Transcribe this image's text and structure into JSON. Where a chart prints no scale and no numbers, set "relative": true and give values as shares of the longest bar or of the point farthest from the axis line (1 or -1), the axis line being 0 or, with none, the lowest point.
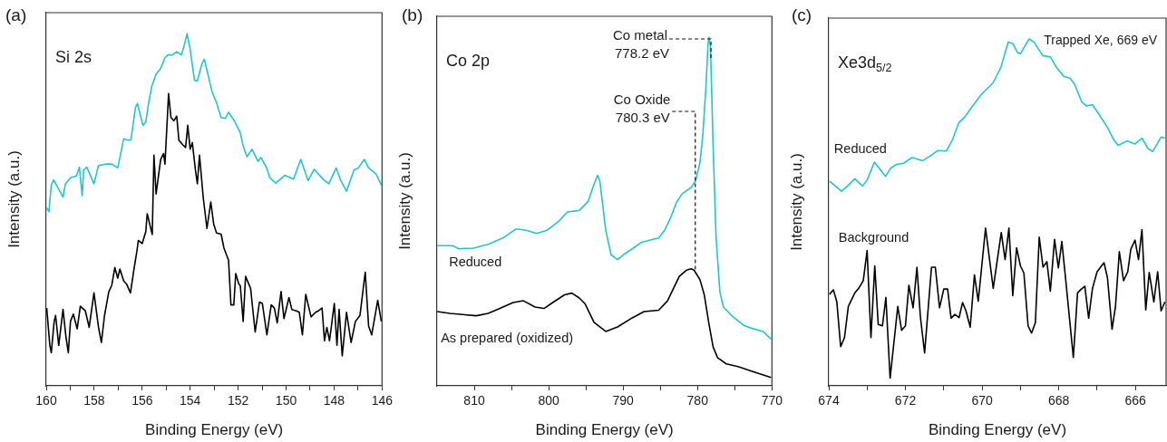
{
  "chart_data": [
    {
      "type": "line",
      "title": "(a)",
      "xlabel": "Binding Energy (eV)",
      "ylabel": "Intensity (a.u.)",
      "relative": true,
      "xlim": [
        160,
        146
      ],
      "xticks": [
        160,
        {
          "value": 159,
          "label": null
        },
        158,
        {
          "value": 157,
          "label": null
        },
        156,
        {
          "value": 155,
          "label": null
        },
        154,
        {
          "value": 153,
          "label": null
        },
        152,
        {
          "value": 151,
          "label": null
        },
        150,
        {
          "value": 149,
          "label": null
        },
        148,
        {
          "value": 147,
          "label": null
        },
        146
      ],
      "annotations": [
        "Si 2s"
      ],
      "series": [
        {
          "color": "#1fc6cf",
          "x": [
            159.98,
            159.89,
            159.79,
            159.69,
            159.54,
            159.3,
            159.2,
            158.99,
            158.74,
            158.62,
            158.5,
            158.44,
            158.31,
            158.01,
            157.82,
            157.51,
            157.27,
            157.02,
            156.77,
            156.59,
            156.47,
            156.28,
            156.2,
            155.97,
            155.85,
            155.73,
            155.6,
            155.42,
            155.23,
            155.05,
            154.93,
            154.74,
            154.56,
            154.37,
            154.25,
            154.13,
            154.0,
            153.82,
            153.7,
            153.51,
            153.41,
            153.2,
            153.08,
            152.9,
            152.71,
            152.53,
            152.4,
            152.16,
            151.91,
            151.79,
            151.63,
            151.42,
            151.17,
            151.05,
            150.8,
            150.68,
            150.43,
            150.06,
            149.69,
            149.39,
            149.08,
            148.83,
            148.46,
            148.22,
            147.91,
            147.72,
            147.48,
            147.17,
            146.99,
            146.74,
            146.56,
            146.25,
            146.03
          ],
          "values": [
            0.506,
            0.494,
            0.57,
            0.585,
            0.566,
            0.536,
            0.574,
            0.591,
            0.596,
            0.621,
            0.54,
            0.613,
            0.621,
            0.574,
            0.626,
            0.63,
            0.63,
            0.619,
            0.702,
            0.698,
            0.698,
            0.791,
            0.802,
            0.74,
            0.749,
            0.804,
            0.851,
            0.885,
            0.902,
            0.932,
            0.94,
            0.94,
            0.949,
            0.94,
            0.966,
            1.0,
            0.957,
            0.868,
            0.866,
            0.915,
            0.928,
            0.868,
            0.834,
            0.804,
            0.762,
            0.76,
            0.777,
            0.753,
            0.719,
            0.681,
            0.651,
            0.672,
            0.638,
            0.649,
            0.617,
            0.591,
            0.576,
            0.598,
            0.587,
            0.643,
            0.583,
            0.615,
            0.587,
            0.574,
            0.619,
            0.583,
            0.553,
            0.613,
            0.619,
            0.643,
            0.619,
            0.602,
            0.57
          ]
        },
        {
          "color": "#000000",
          "x": [
            159.98,
            159.85,
            159.79,
            159.67,
            159.61,
            159.48,
            159.3,
            159.18,
            159.08,
            158.99,
            158.87,
            158.71,
            158.58,
            158.37,
            158.21,
            158.01,
            157.82,
            157.7,
            157.57,
            157.39,
            157.27,
            157.14,
            157.02,
            156.93,
            156.77,
            156.65,
            156.49,
            156.34,
            156.22,
            156.16,
            156.0,
            155.85,
            155.79,
            155.67,
            155.58,
            155.51,
            155.42,
            155.23,
            155.11,
            155.05,
            154.9,
            154.8,
            154.68,
            154.56,
            154.47,
            154.31,
            154.19,
            154.1,
            154.0,
            153.91,
            153.78,
            153.7,
            153.61,
            153.45,
            153.3,
            153.14,
            153.02,
            152.9,
            152.71,
            152.59,
            152.4,
            152.3,
            152.18,
            152.1,
            151.97,
            151.91,
            151.79,
            151.69,
            151.48,
            151.29,
            151.11,
            150.99,
            150.8,
            150.62,
            150.49,
            150.37,
            150.21,
            150.09,
            149.88,
            149.76,
            149.57,
            149.45,
            149.32,
            149.18,
            148.96,
            148.77,
            148.65,
            148.5,
            148.4,
            148.3,
            148.19,
            147.99,
            147.88,
            147.79,
            147.66,
            147.48,
            147.29,
            147.11,
            146.92,
            146.7,
            146.56,
            146.43,
            146.18,
            146.03
          ],
          "values": [
            0.221,
            0.115,
            0.094,
            0.183,
            0.2,
            0.115,
            0.217,
            0.14,
            0.094,
            0.183,
            0.204,
            0.162,
            0.226,
            0.213,
            0.166,
            0.264,
            0.166,
            0.123,
            0.2,
            0.268,
            0.285,
            0.336,
            0.306,
            0.332,
            0.298,
            0.289,
            0.264,
            0.332,
            0.383,
            0.413,
            0.404,
            0.438,
            0.489,
            0.455,
            0.43,
            0.655,
            0.545,
            0.643,
            0.66,
            0.63,
            0.83,
            0.762,
            0.753,
            0.766,
            0.698,
            0.685,
            0.677,
            0.74,
            0.672,
            0.691,
            0.613,
            0.574,
            0.655,
            0.532,
            0.447,
            0.522,
            0.46,
            0.434,
            0.431,
            0.391,
            0.357,
            0.23,
            0.23,
            0.319,
            0.289,
            0.285,
            0.183,
            0.311,
            0.277,
            0.153,
            0.238,
            0.234,
            0.145,
            0.23,
            0.221,
            0.179,
            0.268,
            0.191,
            0.251,
            0.217,
            0.213,
            0.209,
            0.145,
            0.26,
            0.196,
            0.209,
            0.213,
            0.221,
            0.128,
            0.166,
            0.128,
            0.234,
            0.115,
            0.217,
            0.085,
            0.209,
            0.123,
            0.183,
            0.2,
            0.323,
            0.17,
            0.145,
            0.243,
            0.183
          ]
        }
      ]
    },
    {
      "type": "line",
      "title": "(b)",
      "xlabel": "Binding Energy (eV)",
      "ylabel": "Intensity (a.u.)",
      "relative": true,
      "xlim": [
        815,
        770
      ],
      "xticks": [
        810,
        {
          "value": 805,
          "label": null
        },
        800,
        {
          "value": 795,
          "label": null
        },
        790,
        {
          "value": 785,
          "label": null
        },
        780,
        {
          "value": 775,
          "label": null
        },
        770
      ],
      "annotations": [
        "Co 2p",
        {
          "text": "Co metal\n778.2 eV",
          "x": 778.2,
          "y": 0.934
        },
        {
          "text": "Co Oxide\n780.3 eV",
          "x": 780.3,
          "y": 0.326
        }
      ],
      "series": [
        {
          "name": "Reduced",
          "color": "#1fc6cf",
          "x": [
            814.98,
            814.07,
            812.89,
            812.09,
            810.12,
            808.14,
            806.17,
            804.39,
            803.0,
            801.62,
            800.24,
            798.66,
            797.47,
            795.89,
            794.7,
            793.91,
            793.44,
            793.12,
            792.33,
            791.62,
            790.75,
            789.96,
            788.77,
            787.59,
            786.01,
            785.22,
            784.43,
            783.64,
            782.85,
            782.06,
            780.87,
            780.28,
            779.68,
            779.29,
            778.89,
            778.58,
            778.46,
            778.26,
            777.91,
            777.51,
            777.0,
            776.52,
            775.34,
            773.75,
            772.57,
            771.19,
            770.12
          ],
          "values": [
            0.402,
            0.402,
            0.402,
            0.393,
            0.395,
            0.406,
            0.424,
            0.45,
            0.446,
            0.437,
            0.446,
            0.472,
            0.499,
            0.503,
            0.529,
            0.578,
            0.604,
            0.587,
            0.446,
            0.376,
            0.362,
            0.376,
            0.393,
            0.411,
            0.42,
            0.424,
            0.446,
            0.481,
            0.525,
            0.551,
            0.569,
            0.587,
            0.639,
            0.719,
            0.85,
            0.982,
            1.0,
            0.974,
            0.692,
            0.428,
            0.27,
            0.226,
            0.2,
            0.173,
            0.164,
            0.156,
            0.134
          ]
        },
        {
          "name": "As prepared (oxidized)",
          "color": "#000000",
          "x": [
            814.98,
            813.28,
            811.3,
            809.72,
            808.14,
            806.56,
            804.78,
            803.4,
            801.82,
            800.63,
            799.45,
            797.87,
            796.88,
            795.89,
            795.1,
            793.91,
            792.33,
            790.75,
            788.77,
            787.19,
            785.22,
            784.03,
            783.24,
            782.45,
            781.46,
            780.87,
            780.47,
            779.68,
            779.09,
            778.5,
            777.91,
            777.31,
            776.13,
            774.55,
            772.57,
            770.12
          ],
          "values": [
            0.213,
            0.208,
            0.204,
            0.201,
            0.208,
            0.222,
            0.239,
            0.244,
            0.226,
            0.222,
            0.239,
            0.261,
            0.266,
            0.252,
            0.235,
            0.182,
            0.156,
            0.169,
            0.195,
            0.213,
            0.217,
            0.244,
            0.279,
            0.314,
            0.332,
            0.336,
            0.332,
            0.305,
            0.261,
            0.182,
            0.112,
            0.081,
            0.063,
            0.055,
            0.041,
            0.024
          ]
        }
      ]
    },
    {
      "type": "line",
      "title": "(c)",
      "xlabel": "Binding Energy (eV)",
      "ylabel": "Intensity (a.u.)",
      "relative": true,
      "xlim": [
        674,
        665.2
      ],
      "xticks": [
        674,
        {
          "value": 673,
          "label": null
        },
        672,
        {
          "value": 671,
          "label": null
        },
        670,
        {
          "value": 669,
          "label": null
        },
        668,
        {
          "value": 667,
          "label": null
        },
        666
      ],
      "annotations": [
        "Xe3d$_{5/2}$",
        "Trapped Xe, 669 eV"
      ],
      "series": [
        {
          "name": "Reduced",
          "color": "#1fc6cf",
          "x": [
            673.98,
            673.83,
            673.67,
            673.51,
            673.32,
            673.12,
            673.0,
            672.81,
            672.69,
            672.52,
            672.38,
            672.22,
            672.06,
            671.83,
            671.55,
            671.36,
            671.16,
            670.93,
            670.77,
            670.61,
            670.45,
            670.26,
            670.02,
            669.71,
            669.51,
            669.32,
            669.2,
            669.08,
            669.0,
            668.89,
            668.77,
            668.65,
            668.42,
            668.22,
            668.06,
            667.87,
            667.71,
            667.59,
            667.4,
            667.28,
            667.12,
            666.96,
            666.73,
            666.57,
            666.45,
            666.22,
            666.02,
            665.83,
            665.67,
            665.55,
            665.33,
            665.23
          ],
          "values": [
            0.59,
            0.576,
            0.561,
            0.576,
            0.597,
            0.576,
            0.593,
            0.645,
            0.628,
            0.604,
            0.628,
            0.639,
            0.641,
            0.658,
            0.649,
            0.662,
            0.678,
            0.677,
            0.71,
            0.758,
            0.775,
            0.805,
            0.84,
            0.874,
            0.918,
            0.991,
            0.987,
            0.961,
            0.957,
            0.978,
            1.0,
            0.991,
            0.952,
            0.948,
            0.918,
            0.892,
            0.887,
            0.87,
            0.818,
            0.807,
            0.81,
            0.784,
            0.745,
            0.71,
            0.693,
            0.706,
            0.697,
            0.714,
            0.684,
            0.675,
            0.717,
            0.714
          ]
        },
        {
          "name": "Background",
          "color": "#000000",
          "x": [
            673.98,
            673.88,
            673.79,
            673.69,
            673.59,
            673.49,
            673.32,
            673.22,
            673.1,
            673.0,
            672.9,
            672.8,
            672.71,
            672.6,
            672.51,
            672.4,
            672.2,
            672.1,
            672.0,
            671.91,
            671.8,
            671.7,
            671.61,
            671.5,
            671.32,
            671.22,
            671.11,
            671.0,
            670.9,
            670.81,
            670.71,
            670.6,
            670.51,
            670.42,
            670.31,
            670.2,
            670.1,
            669.91,
            669.71,
            669.5,
            669.4,
            669.3,
            669.2,
            669.1,
            669.0,
            668.91,
            668.8,
            668.71,
            668.61,
            668.51,
            668.41,
            668.31,
            668.22,
            668.11,
            668.01,
            667.92,
            667.82,
            667.62,
            667.51,
            667.41,
            667.32,
            667.22,
            667.12,
            667.0,
            666.82,
            666.73,
            666.61,
            666.52,
            666.42,
            666.31,
            666.2,
            666.12,
            666.01,
            665.92,
            665.83,
            665.73,
            665.64,
            665.52,
            665.42,
            665.33,
            665.23
          ],
          "values": [
            0.264,
            0.277,
            0.242,
            0.113,
            0.139,
            0.229,
            0.268,
            0.281,
            0.303,
            0.39,
            0.139,
            0.346,
            0.177,
            0.173,
            0.255,
            0.022,
            0.229,
            0.16,
            0.173,
            0.29,
            0.225,
            0.342,
            0.199,
            0.095,
            0.342,
            0.342,
            0.225,
            0.279,
            0.279,
            0.195,
            0.206,
            0.197,
            0.24,
            0.216,
            0.169,
            0.32,
            0.244,
            0.455,
            0.281,
            0.442,
            0.364,
            0.455,
            0.26,
            0.398,
            0.346,
            0.325,
            0.173,
            0.152,
            0.182,
            0.429,
            0.342,
            0.358,
            0.273,
            0.422,
            0.34,
            0.416,
            0.307,
            0.082,
            0.268,
            0.279,
            0.287,
            0.195,
            0.281,
            0.329,
            0.355,
            0.312,
            0.163,
            0.229,
            0.387,
            0.303,
            0.329,
            0.394,
            0.42,
            0.364,
            0.45,
            0.219,
            0.327,
            0.242,
            0.329,
            0.216,
            0.242
          ]
        }
      ]
    }
  ]
}
